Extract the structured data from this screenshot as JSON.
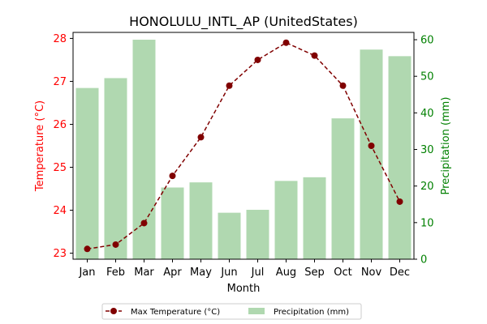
{
  "chart_data": {
    "type": "bar+line",
    "title": "HONOLULU_INTL_AP (UnitedStates)",
    "xlabel": "Month",
    "ylabel_left": "Temperature (°C)",
    "ylabel_right": "Precipitation (mm)",
    "categories": [
      "Jan",
      "Feb",
      "Mar",
      "Apr",
      "May",
      "Jun",
      "Jul",
      "Aug",
      "Sep",
      "Oct",
      "Nov",
      "Dec"
    ],
    "left_axis": {
      "ticks": [
        23,
        24,
        25,
        26,
        27,
        28
      ],
      "ylim": [
        22.86,
        28.14
      ]
    },
    "right_axis": {
      "ticks": [
        0,
        10,
        20,
        30,
        40,
        50,
        60
      ],
      "ylim": [
        0,
        62
      ]
    },
    "series": [
      {
        "name": "Max Temperature (°C)",
        "kind": "line",
        "axis": "left",
        "color": "#800000",
        "style": "dashed",
        "marker": "circle",
        "values": [
          23.1,
          23.2,
          23.7,
          24.8,
          25.7,
          26.9,
          27.5,
          27.9,
          27.6,
          26.9,
          25.5,
          24.2
        ]
      },
      {
        "name": "Precipitation (mm)",
        "kind": "bar",
        "axis": "right",
        "color": "#b0d8b0",
        "values": [
          46.8,
          49.5,
          60.0,
          19.6,
          21.0,
          12.7,
          13.5,
          21.4,
          22.4,
          38.5,
          57.3,
          55.5
        ]
      }
    ],
    "axis_colors": {
      "left": "#ff0000",
      "right": "#008000"
    },
    "legend": {
      "placement": "bottom-center",
      "columns": 2
    },
    "grid": false
  }
}
